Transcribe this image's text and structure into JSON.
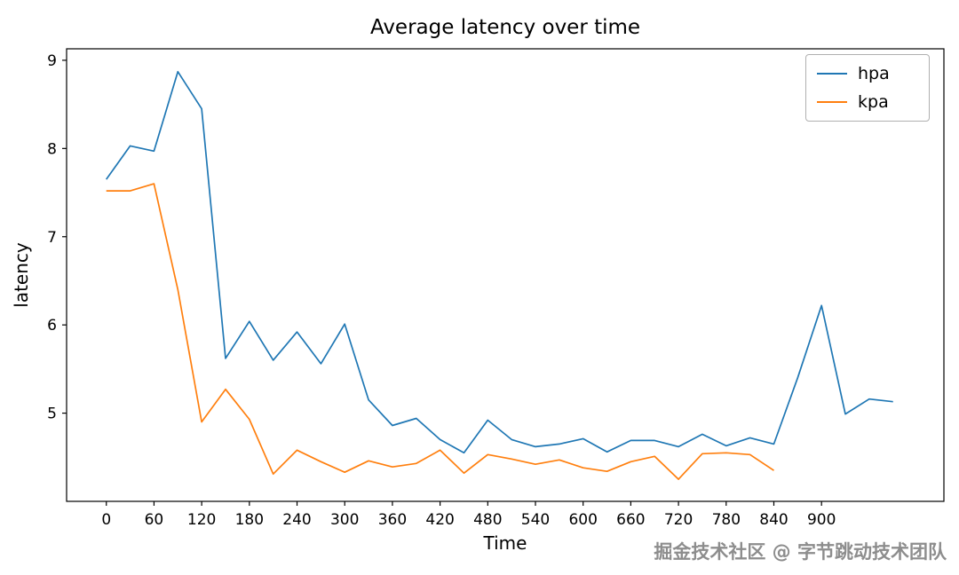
{
  "chart_data": {
    "type": "line",
    "title": "Average latency over time",
    "xlabel": "Time",
    "ylabel": "latency",
    "xlim": [
      -50,
      1054
    ],
    "ylim": [
      4.0,
      9.13
    ],
    "xticks": [
      0,
      60,
      120,
      180,
      240,
      300,
      360,
      420,
      480,
      540,
      600,
      660,
      720,
      780,
      840,
      900
    ],
    "yticks": [
      5,
      6,
      7,
      8,
      9
    ],
    "grid": false,
    "legend_position": "upper right",
    "series": [
      {
        "name": "hpa",
        "color": "#1f77b4",
        "x": [
          0,
          30,
          60,
          90,
          120,
          150,
          180,
          210,
          240,
          270,
          300,
          330,
          360,
          390,
          420,
          450,
          480,
          510,
          540,
          570,
          600,
          630,
          660,
          690,
          720,
          750,
          780,
          810,
          840,
          870,
          900,
          930,
          960,
          990
        ],
        "y": [
          7.65,
          8.03,
          7.97,
          8.87,
          8.45,
          5.62,
          6.04,
          5.6,
          5.92,
          5.56,
          6.01,
          5.15,
          4.86,
          4.94,
          4.7,
          4.55,
          4.92,
          4.7,
          4.62,
          4.65,
          4.71,
          4.56,
          4.69,
          4.69,
          4.62,
          4.76,
          4.63,
          4.72,
          4.65,
          5.4,
          6.22,
          4.99,
          5.16,
          5.13
        ]
      },
      {
        "name": "kpa",
        "color": "#ff7f0e",
        "x": [
          0,
          30,
          60,
          90,
          120,
          150,
          180,
          210,
          240,
          270,
          300,
          330,
          360,
          390,
          420,
          450,
          480,
          510,
          540,
          570,
          600,
          630,
          660,
          690,
          720,
          750,
          780,
          810,
          840
        ],
        "y": [
          7.52,
          7.52,
          7.6,
          6.4,
          4.9,
          5.27,
          4.93,
          4.31,
          4.58,
          4.45,
          4.33,
          4.46,
          4.39,
          4.43,
          4.58,
          4.32,
          4.53,
          4.48,
          4.42,
          4.47,
          4.38,
          4.34,
          4.45,
          4.51,
          4.25,
          4.54,
          4.55,
          4.53,
          4.35
        ]
      }
    ]
  },
  "watermark": "掘金技术社区 @ 字节跳动技术团队"
}
